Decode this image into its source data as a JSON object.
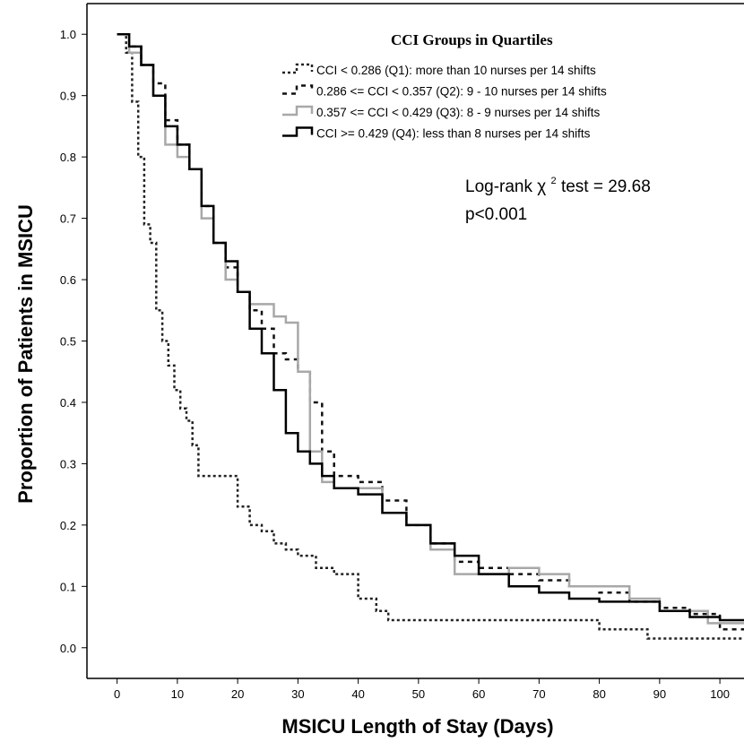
{
  "chart_data": {
    "type": "line",
    "title": "",
    "xlabel": "MSICU Length of Stay (Days)",
    "ylabel": "Proportion of Patients in MSICU",
    "xlim": [
      -5,
      104
    ],
    "ylim": [
      -0.05,
      1.05
    ],
    "xticks": [
      0,
      10,
      20,
      30,
      40,
      50,
      60,
      70,
      80,
      90,
      100
    ],
    "yticks": [
      0.0,
      0.1,
      0.2,
      0.3,
      0.4,
      0.5,
      0.6,
      0.7,
      0.8,
      0.9,
      1.0
    ],
    "ytick_labels": [
      "0.0",
      "0.1",
      "0.2",
      "0.3",
      "0.4",
      "0.5",
      "0.6",
      "0.7",
      "0.8",
      "0.9",
      "1.0"
    ],
    "step": true,
    "grid": false,
    "legend_title": "CCI Groups in Quartiles",
    "legend_position": "top-right",
    "annotation": {
      "line1_prefix": "Log-rank χ",
      "line1_superscript": "2",
      "line1_suffix": " test = 29.68",
      "line2": "p<0.001"
    },
    "series": [
      {
        "name": "CCI < 0.286 (Q1): more than 10 nurses per 14 shifts",
        "color": "#222222",
        "style": "dotted",
        "x": [
          0,
          1.5,
          2.5,
          3.5,
          4.5,
          5.5,
          6.5,
          7.5,
          8.5,
          9.5,
          10.5,
          11.5,
          12.5,
          13.5,
          15,
          20,
          22,
          24,
          26,
          28,
          30,
          33,
          36,
          40,
          43,
          45,
          50,
          60,
          70,
          80,
          88,
          95,
          102,
          104
        ],
        "y": [
          1.0,
          0.97,
          0.89,
          0.8,
          0.69,
          0.66,
          0.55,
          0.5,
          0.46,
          0.42,
          0.39,
          0.37,
          0.33,
          0.28,
          0.28,
          0.23,
          0.2,
          0.19,
          0.17,
          0.16,
          0.15,
          0.13,
          0.12,
          0.08,
          0.06,
          0.045,
          0.045,
          0.045,
          0.045,
          0.03,
          0.015,
          0.015,
          0.015,
          0.015
        ]
      },
      {
        "name": "0.286 <= CCI < 0.357 (Q2): 9 - 10 nurses per 14 shifts",
        "color": "#111111",
        "style": "dashed",
        "x": [
          0,
          2,
          4,
          6,
          8,
          10,
          12,
          14,
          16,
          18,
          20,
          22,
          24,
          26,
          28,
          30,
          32,
          34,
          36,
          40,
          44,
          48,
          52,
          56,
          60,
          65,
          70,
          75,
          80,
          85,
          90,
          95,
          100,
          104
        ],
        "y": [
          1.0,
          0.98,
          0.95,
          0.92,
          0.86,
          0.82,
          0.78,
          0.72,
          0.66,
          0.62,
          0.58,
          0.55,
          0.52,
          0.48,
          0.47,
          0.45,
          0.4,
          0.32,
          0.28,
          0.27,
          0.24,
          0.2,
          0.17,
          0.14,
          0.13,
          0.12,
          0.11,
          0.1,
          0.09,
          0.075,
          0.065,
          0.055,
          0.03,
          0.03
        ]
      },
      {
        "name": "0.357 <= CCI < 0.429 (Q3): 8 - 9 nurses per 14 shifts",
        "color": "#a8a8a8",
        "style": "solid",
        "x": [
          0,
          2,
          4,
          6,
          8,
          10,
          12,
          14,
          16,
          18,
          20,
          22,
          24,
          26,
          28,
          30,
          32,
          34,
          36,
          40,
          44,
          48,
          52,
          56,
          60,
          65,
          70,
          75,
          80,
          85,
          90,
          95,
          98,
          104
        ],
        "y": [
          1.0,
          0.97,
          0.95,
          0.9,
          0.82,
          0.8,
          0.78,
          0.7,
          0.66,
          0.6,
          0.58,
          0.56,
          0.56,
          0.54,
          0.53,
          0.45,
          0.32,
          0.27,
          0.26,
          0.26,
          0.22,
          0.2,
          0.16,
          0.12,
          0.12,
          0.13,
          0.12,
          0.1,
          0.1,
          0.08,
          0.06,
          0.06,
          0.04,
          0.04
        ]
      },
      {
        "name": "CCI >= 0.429 (Q4): less than 8 nurses per 14 shifts",
        "color": "#000000",
        "style": "solid",
        "x": [
          0,
          2,
          4,
          6,
          8,
          10,
          12,
          14,
          16,
          18,
          20,
          22,
          24,
          26,
          28,
          30,
          32,
          34,
          36,
          40,
          44,
          48,
          52,
          56,
          60,
          65,
          70,
          75,
          80,
          85,
          90,
          95,
          100,
          104
        ],
        "y": [
          1.0,
          0.98,
          0.95,
          0.9,
          0.85,
          0.82,
          0.78,
          0.72,
          0.66,
          0.63,
          0.58,
          0.52,
          0.48,
          0.42,
          0.35,
          0.32,
          0.3,
          0.28,
          0.26,
          0.25,
          0.22,
          0.2,
          0.17,
          0.15,
          0.12,
          0.1,
          0.09,
          0.08,
          0.075,
          0.075,
          0.06,
          0.05,
          0.045,
          0.045
        ]
      }
    ]
  }
}
